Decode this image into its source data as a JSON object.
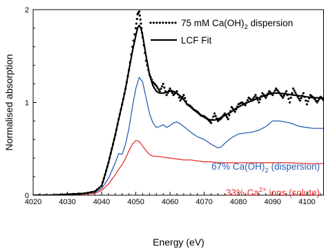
{
  "chart_data": {
    "type": "line",
    "xlabel": "Energy (eV)",
    "ylabel": "Normalised absorption",
    "xlim": [
      4020,
      4105
    ],
    "ylim": [
      0,
      2
    ],
    "x_ticks": [
      4020,
      4030,
      4040,
      4050,
      4060,
      4070,
      4080,
      4090,
      4100
    ],
    "y_ticks": [
      0,
      1,
      2
    ],
    "legend": {
      "placement": "top-right",
      "entries": [
        {
          "label_main": "75 mM Ca(OH)",
          "label_sub": "2",
          "label_tail": " dispersion",
          "style": "dotted",
          "color": "#000000"
        },
        {
          "label_main": "LCF Fit",
          "label_sub": "",
          "label_tail": "",
          "style": "solid",
          "color": "#000000"
        }
      ]
    },
    "annotations": [
      {
        "part_a": "67% Ca(OH)",
        "sub": "2",
        "sup": "",
        "part_b": " (dispersion)",
        "color": "#2b5fb0"
      },
      {
        "part_a": "33% Ca",
        "sub": "",
        "sup": "2+",
        "part_b": " ions (solute)",
        "color": "#e5322c"
      }
    ],
    "series": [
      {
        "role": "measured",
        "style": "dotted",
        "color": "#000000",
        "x": [
          4020,
          4025,
          4030,
          4035,
          4038,
          4040,
          4041,
          4042,
          4043,
          4044,
          4045,
          4046,
          4047,
          4048,
          4049,
          4050,
          4050.5,
          4051,
          4051.5,
          4052,
          4053,
          4054,
          4055,
          4056,
          4057,
          4058,
          4059,
          4060,
          4061,
          4062,
          4063,
          4064,
          4065,
          4066,
          4067,
          4068,
          4069,
          4070,
          4071,
          4072,
          4073,
          4074,
          4075,
          4076,
          4077,
          4078,
          4079,
          4080,
          4081,
          4082,
          4083,
          4084,
          4085,
          4086,
          4087,
          4088,
          4089,
          4090,
          4091,
          4092,
          4093,
          4094,
          4095,
          4096,
          4097,
          4098,
          4099,
          4100,
          4101,
          4102,
          4103,
          4104,
          4105
        ],
        "y": [
          0.0,
          0.0,
          0.01,
          0.02,
          0.04,
          0.1,
          0.22,
          0.35,
          0.5,
          0.65,
          0.82,
          0.98,
          1.15,
          1.35,
          1.6,
          1.8,
          1.95,
          1.98,
          1.85,
          1.7,
          1.45,
          1.3,
          1.22,
          1.18,
          1.12,
          1.2,
          1.08,
          1.15,
          1.08,
          1.12,
          1.02,
          1.08,
          0.98,
          0.96,
          0.92,
          0.9,
          0.86,
          0.85,
          0.82,
          0.78,
          0.88,
          0.8,
          0.83,
          0.88,
          0.82,
          0.95,
          0.9,
          0.98,
          1.0,
          0.97,
          1.05,
          1.02,
          1.08,
          1.0,
          1.1,
          1.05,
          1.12,
          1.08,
          1.15,
          1.1,
          1.05,
          1.12,
          1.0,
          1.15,
          1.08,
          1.02,
          1.1,
          0.98,
          1.08,
          1.05,
          1.0,
          1.06,
          1.02
        ]
      },
      {
        "role": "fit",
        "style": "solid",
        "color": "#000000",
        "x": [
          4020,
          4025,
          4030,
          4035,
          4038,
          4040,
          4041,
          4042,
          4043,
          4044,
          4045,
          4046,
          4047,
          4048,
          4049,
          4050,
          4050.5,
          4051,
          4051.5,
          4052,
          4053,
          4054,
          4055,
          4056,
          4057,
          4058,
          4059,
          4060,
          4061,
          4062,
          4063,
          4064,
          4065,
          4066,
          4067,
          4068,
          4069,
          4070,
          4071,
          4072,
          4073,
          4074,
          4075,
          4076,
          4077,
          4078,
          4079,
          4080,
          4082,
          4084,
          4086,
          4088,
          4090,
          4092,
          4094,
          4096,
          4098,
          4100,
          4102,
          4105
        ],
        "y": [
          0.0,
          0.0,
          0.01,
          0.02,
          0.04,
          0.1,
          0.22,
          0.35,
          0.5,
          0.65,
          0.82,
          0.98,
          1.15,
          1.35,
          1.55,
          1.72,
          1.8,
          1.83,
          1.8,
          1.72,
          1.5,
          1.3,
          1.18,
          1.12,
          1.1,
          1.1,
          1.11,
          1.12,
          1.12,
          1.1,
          1.07,
          1.03,
          0.98,
          0.95,
          0.92,
          0.89,
          0.86,
          0.84,
          0.82,
          0.81,
          0.81,
          0.82,
          0.84,
          0.86,
          0.88,
          0.9,
          0.93,
          0.95,
          0.99,
          1.02,
          1.05,
          1.08,
          1.1,
          1.1,
          1.09,
          1.08,
          1.07,
          1.06,
          1.05,
          1.05
        ]
      },
      {
        "role": "component",
        "name": "67% Ca(OH)2 (dispersion)",
        "style": "solid",
        "color": "#2b5fb0",
        "x": [
          4020,
          4030,
          4038,
          4040,
          4042,
          4044,
          4045,
          4046,
          4047,
          4048,
          4049,
          4050,
          4051,
          4052,
          4053,
          4054,
          4055,
          4056,
          4057,
          4058,
          4059,
          4060,
          4061,
          4062,
          4063,
          4064,
          4066,
          4068,
          4070,
          4072,
          4074,
          4075,
          4076,
          4078,
          4080,
          4082,
          4084,
          4086,
          4088,
          4090,
          4092,
          4095,
          4098,
          4100,
          4102,
          4105
        ],
        "y": [
          0.0,
          0.0,
          0.03,
          0.07,
          0.18,
          0.35,
          0.45,
          0.44,
          0.55,
          0.72,
          0.95,
          1.15,
          1.27,
          1.22,
          1.05,
          0.88,
          0.78,
          0.73,
          0.74,
          0.76,
          0.73,
          0.75,
          0.78,
          0.79,
          0.77,
          0.74,
          0.68,
          0.63,
          0.6,
          0.55,
          0.51,
          0.52,
          0.56,
          0.62,
          0.66,
          0.67,
          0.68,
          0.7,
          0.74,
          0.8,
          0.8,
          0.78,
          0.74,
          0.73,
          0.72,
          0.72
        ]
      },
      {
        "role": "component",
        "name": "33% Ca2+ ions (solute)",
        "style": "solid",
        "color": "#e5322c",
        "x": [
          4020,
          4030,
          4038,
          4040,
          4042,
          4044,
          4045,
          4046,
          4047,
          4048,
          4049,
          4050,
          4051,
          4052,
          4053,
          4054,
          4055,
          4056,
          4058,
          4060,
          4062,
          4064,
          4066,
          4068,
          4070,
          4072,
          4074,
          4076,
          4078,
          4080,
          4085,
          4090,
          4095,
          4100,
          4105
        ],
        "y": [
          0.0,
          0.0,
          0.02,
          0.05,
          0.12,
          0.22,
          0.28,
          0.33,
          0.4,
          0.48,
          0.55,
          0.59,
          0.58,
          0.53,
          0.48,
          0.44,
          0.42,
          0.42,
          0.41,
          0.4,
          0.39,
          0.38,
          0.38,
          0.37,
          0.36,
          0.36,
          0.35,
          0.35,
          0.35,
          0.35,
          0.35,
          0.35,
          0.35,
          0.34,
          0.34
        ]
      }
    ]
  }
}
